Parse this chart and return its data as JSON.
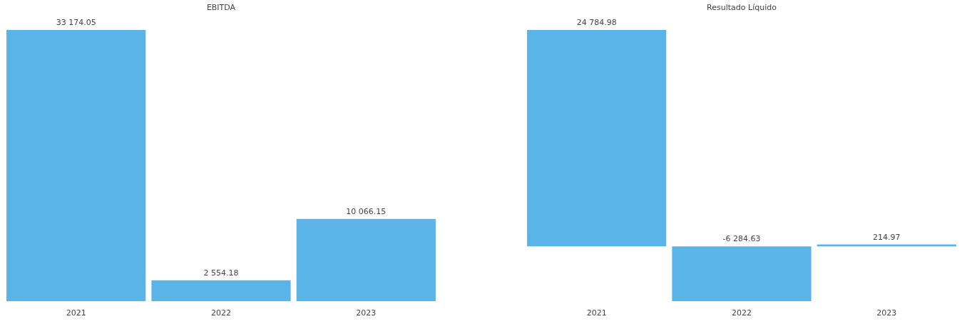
{
  "chart_data": [
    {
      "type": "bar",
      "title": "EBITDA",
      "categories": [
        "2021",
        "2022",
        "2023"
      ],
      "values": [
        33174.05,
        2554.18,
        10066.15
      ],
      "value_labels": [
        "33 174.05",
        "2 554.18",
        "10 066.15"
      ],
      "color": "#5ab4e8"
    },
    {
      "type": "bar",
      "title": "Resultado Líquido",
      "categories": [
        "2021",
        "2022",
        "2023"
      ],
      "values": [
        24784.98,
        -6284.63,
        214.97
      ],
      "value_labels": [
        "24 784.98",
        "-6 284.63",
        "214.97"
      ],
      "color": "#5ab4e8"
    }
  ]
}
